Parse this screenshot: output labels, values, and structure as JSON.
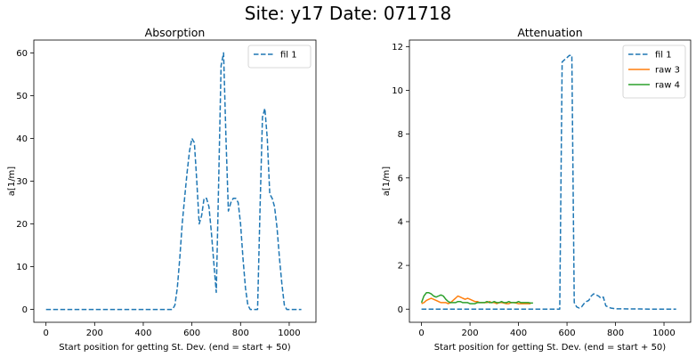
{
  "figure": {
    "title": "Site: y17 Date: 071718"
  },
  "chart_data": [
    {
      "type": "line",
      "title": "Absorption",
      "xlabel": "Start position for getting St. Dev. (end = start + 50)",
      "ylabel": "a[1/m]",
      "xlim": [
        -50,
        1110
      ],
      "ylim": [
        -3,
        63
      ],
      "xticks": [
        0,
        200,
        400,
        600,
        800,
        1000
      ],
      "yticks": [
        0,
        10,
        20,
        30,
        40,
        50,
        60
      ],
      "legend_position": "upper right",
      "grid": false,
      "series": [
        {
          "name": "fil 1",
          "color": "#1f77b4",
          "style": "dashed",
          "x": [
            0,
            100,
            200,
            300,
            400,
            500,
            520,
            530,
            540,
            550,
            560,
            570,
            580,
            590,
            600,
            610,
            620,
            630,
            640,
            650,
            660,
            670,
            680,
            690,
            700,
            710,
            720,
            730,
            740,
            750,
            760,
            770,
            780,
            790,
            800,
            810,
            820,
            830,
            840,
            850,
            860,
            870,
            880,
            890,
            900,
            910,
            920,
            930,
            940,
            950,
            960,
            970,
            980,
            990,
            1000,
            1010,
            1020,
            1030,
            1040,
            1050
          ],
          "y": [
            0,
            0,
            0,
            0,
            0,
            0,
            0,
            1,
            5,
            12,
            20,
            26,
            32,
            37,
            40,
            39,
            30,
            20,
            22,
            26,
            26,
            24,
            18,
            11,
            4,
            30,
            57,
            60,
            40,
            23,
            25,
            26,
            26,
            25,
            20,
            12,
            5,
            1,
            0,
            0,
            0,
            0,
            23,
            45,
            47,
            40,
            27,
            26,
            24,
            19,
            12,
            6,
            1,
            0,
            0,
            0,
            0,
            0,
            0,
            0
          ]
        }
      ]
    },
    {
      "type": "line",
      "title": "Attenuation",
      "xlabel": "Start position for getting St. Dev. (end = start + 50)",
      "ylabel": "a[1/m]",
      "xlim": [
        -50,
        1110
      ],
      "ylim": [
        -0.6,
        12.3
      ],
      "xticks": [
        0,
        200,
        400,
        600,
        800,
        1000
      ],
      "yticks": [
        0,
        2,
        4,
        6,
        8,
        10,
        12
      ],
      "legend_position": "upper right",
      "grid": false,
      "series": [
        {
          "name": "fil 1",
          "color": "#1f77b4",
          "style": "dashed",
          "x": [
            0,
            100,
            200,
            300,
            400,
            500,
            560,
            570,
            580,
            590,
            600,
            610,
            620,
            630,
            640,
            650,
            660,
            670,
            680,
            690,
            700,
            710,
            720,
            730,
            740,
            750,
            760,
            770,
            780,
            800,
            850,
            900,
            950,
            1000,
            1050
          ],
          "y": [
            0,
            0,
            0,
            0,
            0,
            0,
            0,
            0,
            11.3,
            11.4,
            11.5,
            11.6,
            11.6,
            0.3,
            0.1,
            0.05,
            0.1,
            0.25,
            0.35,
            0.4,
            0.6,
            0.7,
            0.65,
            0.6,
            0.5,
            0.55,
            0.15,
            0.1,
            0.05,
            0.02,
            0.01,
            0.01,
            0,
            0,
            0
          ]
        },
        {
          "name": "raw 3",
          "color": "#ff7f0e",
          "style": "solid",
          "x": [
            0,
            10,
            20,
            30,
            40,
            50,
            60,
            70,
            80,
            90,
            100,
            110,
            120,
            130,
            140,
            150,
            160,
            170,
            180,
            190,
            200,
            210,
            220,
            230,
            240,
            250,
            260,
            270,
            280,
            290,
            300,
            310,
            320,
            330,
            340,
            350,
            360,
            370,
            380,
            390,
            400,
            410,
            420,
            430,
            440,
            450
          ],
          "y": [
            0.25,
            0.3,
            0.4,
            0.45,
            0.5,
            0.45,
            0.4,
            0.35,
            0.3,
            0.3,
            0.3,
            0.25,
            0.3,
            0.4,
            0.5,
            0.6,
            0.55,
            0.5,
            0.45,
            0.5,
            0.45,
            0.4,
            0.35,
            0.35,
            0.3,
            0.3,
            0.3,
            0.3,
            0.35,
            0.3,
            0.3,
            0.25,
            0.3,
            0.3,
            0.28,
            0.25,
            0.25,
            0.3,
            0.3,
            0.28,
            0.25,
            0.25,
            0.25,
            0.25,
            0.25,
            0.25
          ]
        },
        {
          "name": "raw 4",
          "color": "#2ca02c",
          "style": "solid",
          "x": [
            0,
            10,
            20,
            30,
            40,
            50,
            60,
            70,
            80,
            90,
            100,
            110,
            120,
            130,
            140,
            150,
            160,
            170,
            180,
            190,
            200,
            210,
            220,
            230,
            240,
            250,
            260,
            270,
            280,
            290,
            300,
            310,
            320,
            330,
            340,
            350,
            360,
            370,
            380,
            390,
            400,
            410,
            420,
            430,
            440,
            450,
            460
          ],
          "y": [
            0.3,
            0.6,
            0.75,
            0.75,
            0.7,
            0.6,
            0.55,
            0.6,
            0.65,
            0.6,
            0.45,
            0.35,
            0.3,
            0.3,
            0.3,
            0.35,
            0.35,
            0.3,
            0.3,
            0.3,
            0.25,
            0.25,
            0.25,
            0.3,
            0.3,
            0.3,
            0.3,
            0.35,
            0.3,
            0.3,
            0.35,
            0.3,
            0.3,
            0.35,
            0.3,
            0.3,
            0.35,
            0.3,
            0.3,
            0.3,
            0.35,
            0.3,
            0.3,
            0.3,
            0.3,
            0.28,
            0.28
          ]
        }
      ]
    }
  ]
}
